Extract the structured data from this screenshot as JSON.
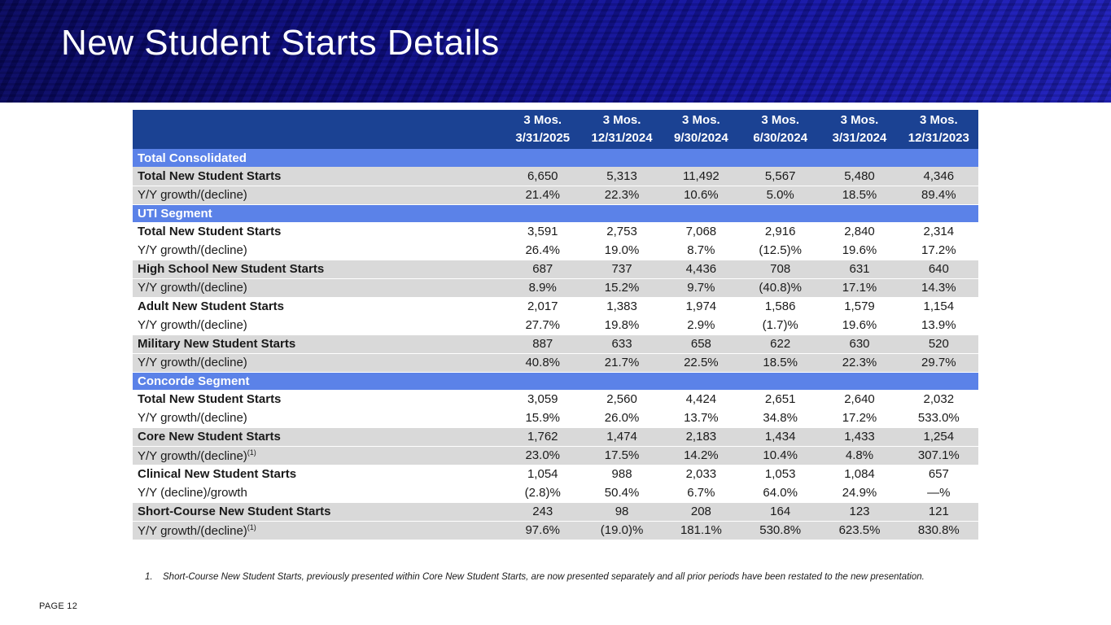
{
  "slide": {
    "title": "New Student Starts Details",
    "page_label": "PAGE 12"
  },
  "colors": {
    "banner_base": "#0d0d7c",
    "header_bg": "#1B4293",
    "section_bg": "#5B82E8",
    "row_gray": "#D9D9D9",
    "row_white": "#FFFFFF",
    "title_text": "#FFFFFF"
  },
  "table": {
    "columns": [
      {
        "line1": "3 Mos.",
        "line2": "3/31/2025"
      },
      {
        "line1": "3 Mos.",
        "line2": "12/31/2024"
      },
      {
        "line1": "3 Mos.",
        "line2": "9/30/2024"
      },
      {
        "line1": "3 Mos.",
        "line2": "6/30/2024"
      },
      {
        "line1": "3 Mos.",
        "line2": "3/31/2024"
      },
      {
        "line1": "3 Mos.",
        "line2": "12/31/2023"
      }
    ],
    "rows": [
      {
        "kind": "section",
        "label": "Total Consolidated"
      },
      {
        "kind": "data",
        "bold": true,
        "shade": "gray",
        "label": "Total New Student Starts",
        "values": [
          "6,650",
          "5,313",
          "11,492",
          "5,567",
          "5,480",
          "4,346"
        ]
      },
      {
        "kind": "data",
        "bold": false,
        "shade": "gray",
        "label": "Y/Y growth/(decline)",
        "values": [
          "21.4%",
          "22.3%",
          "10.6%",
          "5.0%",
          "18.5%",
          "89.4%"
        ]
      },
      {
        "kind": "section",
        "label": "UTI Segment"
      },
      {
        "kind": "data",
        "bold": true,
        "shade": "white",
        "label": "Total New Student Starts",
        "values": [
          "3,591",
          "2,753",
          "7,068",
          "2,916",
          "2,840",
          "2,314"
        ]
      },
      {
        "kind": "data",
        "bold": false,
        "shade": "white",
        "label": "Y/Y growth/(decline)",
        "values": [
          "26.4%",
          "19.0%",
          "8.7%",
          "(12.5)%",
          "19.6%",
          "17.2%"
        ]
      },
      {
        "kind": "data",
        "bold": true,
        "shade": "gray",
        "label": "High School New Student Starts",
        "values": [
          "687",
          "737",
          "4,436",
          "708",
          "631",
          "640"
        ]
      },
      {
        "kind": "data",
        "bold": false,
        "shade": "gray",
        "label": "Y/Y growth/(decline)",
        "values": [
          "8.9%",
          "15.2%",
          "9.7%",
          "(40.8)%",
          "17.1%",
          "14.3%"
        ]
      },
      {
        "kind": "data",
        "bold": true,
        "shade": "white",
        "label": "Adult New Student Starts",
        "values": [
          "2,017",
          "1,383",
          "1,974",
          "1,586",
          "1,579",
          "1,154"
        ]
      },
      {
        "kind": "data",
        "bold": false,
        "shade": "white",
        "label": "Y/Y growth/(decline)",
        "values": [
          "27.7%",
          "19.8%",
          "2.9%",
          "(1.7)%",
          "19.6%",
          "13.9%"
        ]
      },
      {
        "kind": "data",
        "bold": true,
        "shade": "gray",
        "label": "Military New Student Starts",
        "values": [
          "887",
          "633",
          "658",
          "622",
          "630",
          "520"
        ]
      },
      {
        "kind": "data",
        "bold": false,
        "shade": "gray",
        "label": "Y/Y growth/(decline)",
        "values": [
          "40.8%",
          "21.7%",
          "22.5%",
          "18.5%",
          "22.3%",
          "29.7%"
        ]
      },
      {
        "kind": "section",
        "label": "Concorde Segment"
      },
      {
        "kind": "data",
        "bold": true,
        "shade": "white",
        "label": "Total New Student Starts",
        "values": [
          "3,059",
          "2,560",
          "4,424",
          "2,651",
          "2,640",
          "2,032"
        ]
      },
      {
        "kind": "data",
        "bold": false,
        "shade": "white",
        "label": "Y/Y growth/(decline)",
        "values": [
          "15.9%",
          "26.0%",
          "13.7%",
          "34.8%",
          "17.2%",
          "533.0%"
        ]
      },
      {
        "kind": "data",
        "bold": true,
        "shade": "gray",
        "label": "Core New Student Starts",
        "values": [
          "1,762",
          "1,474",
          "2,183",
          "1,434",
          "1,433",
          "1,254"
        ]
      },
      {
        "kind": "data",
        "bold": false,
        "shade": "gray",
        "label": "Y/Y growth/(decline)",
        "sup": "(1)",
        "values": [
          "23.0%",
          "17.5%",
          "14.2%",
          "10.4%",
          "4.8%",
          "307.1%"
        ]
      },
      {
        "kind": "data",
        "bold": true,
        "shade": "white",
        "label": "Clinical New Student Starts",
        "values": [
          "1,054",
          "988",
          "2,033",
          "1,053",
          "1,084",
          "657"
        ]
      },
      {
        "kind": "data",
        "bold": false,
        "shade": "white",
        "label": "Y/Y (decline)/growth",
        "values": [
          "(2.8)%",
          "50.4%",
          "6.7%",
          "64.0%",
          "24.9%",
          "—%"
        ]
      },
      {
        "kind": "data",
        "bold": true,
        "shade": "gray",
        "label": "Short-Course New Student Starts",
        "values": [
          "243",
          "98",
          "208",
          "164",
          "123",
          "121"
        ]
      },
      {
        "kind": "data",
        "bold": false,
        "shade": "gray",
        "label": "Y/Y growth/(decline)",
        "sup": "(1)",
        "values": [
          "97.6%",
          "(19.0)%",
          "181.1%",
          "530.8%",
          "623.5%",
          "830.8%"
        ]
      }
    ]
  },
  "footnote": {
    "number": "1.",
    "text": "Short-Course New Student Starts, previously presented within Core New Student Starts, are now presented separately and all prior periods have been restated to the new presentation."
  }
}
